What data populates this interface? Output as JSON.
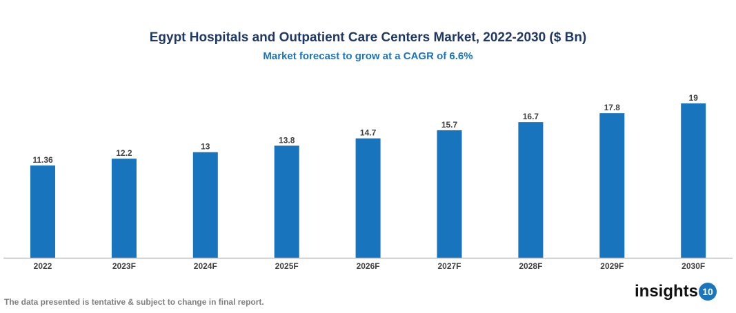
{
  "chart_data": {
    "type": "bar",
    "title": "Egypt Hospitals and Outpatient Care Centers Market, 2022-2030 ($ Bn)",
    "subtitle": "Market forecast to grow at a CAGR of 6.6%",
    "categories": [
      "2022",
      "2023F",
      "2024F",
      "2025F",
      "2026F",
      "2027F",
      "2028F",
      "2029F",
      "2030F"
    ],
    "values": [
      11.36,
      12.2,
      13,
      13.8,
      14.7,
      15.7,
      16.7,
      17.8,
      19
    ],
    "xlabel": "",
    "ylabel": "",
    "ylim": [
      0,
      21
    ],
    "grid": false,
    "bar_color": "#1874bd"
  },
  "footer": {
    "note": "The data presented is tentative & subject to change in final report."
  },
  "logo": {
    "text": "insights",
    "badge": "10"
  }
}
